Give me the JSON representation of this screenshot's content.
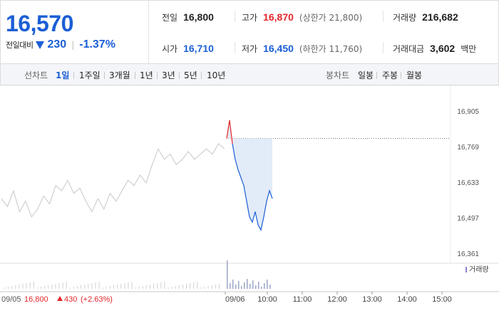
{
  "quote": {
    "price": "16,570",
    "change_label": "전일대비",
    "change_value": "230",
    "change_pct": "-1.37%",
    "down_color": "#1b5fd6",
    "up_color": "#e4262a"
  },
  "stats": {
    "prev_close": {
      "label": "전일",
      "value": "16,800"
    },
    "high": {
      "label": "고가",
      "value": "16,870",
      "sub": "(상한가 21,800)"
    },
    "volume": {
      "label": "거래량",
      "value": "216,682"
    },
    "open": {
      "label": "시가",
      "value": "16,710"
    },
    "low": {
      "label": "저가",
      "value": "16,450",
      "sub": "(하한가 11,760)"
    },
    "amount": {
      "label": "거래대금",
      "value": "3,602",
      "unit": "백만"
    }
  },
  "line_tabs": {
    "label": "선차트",
    "items": [
      "1일",
      "1주일",
      "3개월",
      "1년",
      "3년",
      "5년",
      "10년"
    ],
    "active": "1일"
  },
  "candle_tabs": {
    "label": "봉차트",
    "items": [
      "일봉",
      "주봉",
      "월봉"
    ]
  },
  "chart_data": {
    "type": "line",
    "y_ticks": [
      "16,905",
      "16,769",
      "16,633",
      "16,497",
      "16,361"
    ],
    "ylim": [
      16361,
      16905
    ],
    "x_ticks": [
      "09/06",
      "10:00",
      "11:00",
      "12:00",
      "13:00",
      "14:00",
      "15:00"
    ],
    "prev_day_label": "09/05",
    "prev_day_close": "16,800",
    "prev_day_change": "430",
    "prev_day_pct": "(+2.63%)",
    "prev_close_line": 16800,
    "volume_legend": "거래량",
    "series": [
      {
        "values": [
          16570,
          16540,
          16600,
          16520,
          16560,
          16500,
          16530,
          16580,
          16550,
          16620,
          16600,
          16640,
          16590,
          16610,
          16560,
          16520,
          16570,
          16530,
          16590,
          16560,
          16600,
          16640,
          16620,
          16660,
          16630,
          16700,
          16760,
          16720,
          16740,
          16700,
          16720,
          16750,
          16720,
          16740,
          16760,
          16740,
          16780,
          16760
        ]
      },
      {
        "values": [
          16800,
          16870,
          16780,
          16720,
          16680,
          16650,
          16620,
          16560,
          16500,
          16480,
          16520,
          16470,
          16450,
          16500,
          16560,
          16600,
          16570
        ]
      }
    ]
  }
}
